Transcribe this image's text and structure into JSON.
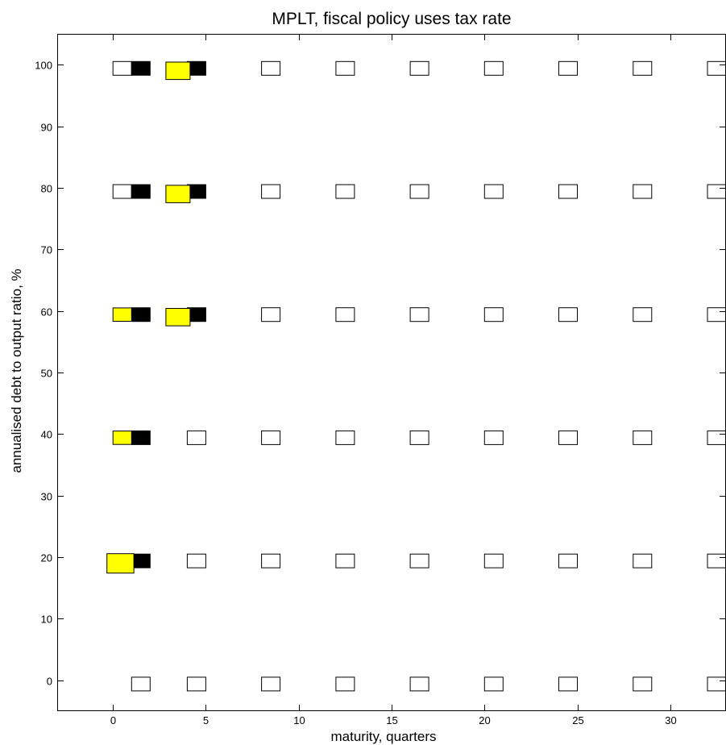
{
  "chart_data": {
    "type": "scatter",
    "title": "MPLT, fiscal policy uses tax rate",
    "xlabel": "maturity, quarters",
    "ylabel": "annualised debt to output ratio, %",
    "xlim": [
      -3,
      33
    ],
    "ylim": [
      -5,
      105
    ],
    "xticks": [
      0,
      5,
      10,
      15,
      20,
      25,
      30
    ],
    "yticks": [
      0,
      10,
      20,
      30,
      40,
      50,
      60,
      70,
      80,
      90,
      100
    ],
    "grid": false,
    "colors": {
      "white": "#ffffff",
      "black": "#000000",
      "yellow": "#ffff00"
    },
    "white_boxes": [
      {
        "x": 1.5,
        "y": -0.6
      },
      {
        "x": 4.5,
        "y": -0.6
      },
      {
        "x": 8.5,
        "y": -0.6
      },
      {
        "x": 12.5,
        "y": -0.6
      },
      {
        "x": 16.5,
        "y": -0.6
      },
      {
        "x": 20.5,
        "y": -0.6
      },
      {
        "x": 24.5,
        "y": -0.6
      },
      {
        "x": 28.5,
        "y": -0.6
      },
      {
        "x": 32.5,
        "y": -0.6
      },
      {
        "x": 4.5,
        "y": 19.4
      },
      {
        "x": 8.5,
        "y": 19.4
      },
      {
        "x": 12.5,
        "y": 19.4
      },
      {
        "x": 16.5,
        "y": 19.4
      },
      {
        "x": 20.5,
        "y": 19.4
      },
      {
        "x": 24.5,
        "y": 19.4
      },
      {
        "x": 28.5,
        "y": 19.4
      },
      {
        "x": 32.5,
        "y": 19.4
      },
      {
        "x": 4.5,
        "y": 39.4
      },
      {
        "x": 8.5,
        "y": 39.4
      },
      {
        "x": 12.5,
        "y": 39.4
      },
      {
        "x": 16.5,
        "y": 39.4
      },
      {
        "x": 20.5,
        "y": 39.4
      },
      {
        "x": 24.5,
        "y": 39.4
      },
      {
        "x": 28.5,
        "y": 39.4
      },
      {
        "x": 32.5,
        "y": 39.4
      },
      {
        "x": 8.5,
        "y": 59.4
      },
      {
        "x": 12.5,
        "y": 59.4
      },
      {
        "x": 16.5,
        "y": 59.4
      },
      {
        "x": 20.5,
        "y": 59.4
      },
      {
        "x": 24.5,
        "y": 59.4
      },
      {
        "x": 28.5,
        "y": 59.4
      },
      {
        "x": 32.5,
        "y": 59.4
      },
      {
        "x": 0.5,
        "y": 79.4
      },
      {
        "x": 8.5,
        "y": 79.4
      },
      {
        "x": 12.5,
        "y": 79.4
      },
      {
        "x": 16.5,
        "y": 79.4
      },
      {
        "x": 20.5,
        "y": 79.4
      },
      {
        "x": 24.5,
        "y": 79.4
      },
      {
        "x": 28.5,
        "y": 79.4
      },
      {
        "x": 32.5,
        "y": 79.4
      },
      {
        "x": 0.5,
        "y": 99.4
      },
      {
        "x": 8.5,
        "y": 99.4
      },
      {
        "x": 12.5,
        "y": 99.4
      },
      {
        "x": 16.5,
        "y": 99.4
      },
      {
        "x": 20.5,
        "y": 99.4
      },
      {
        "x": 24.5,
        "y": 99.4
      },
      {
        "x": 28.5,
        "y": 99.4
      },
      {
        "x": 32.5,
        "y": 99.4
      }
    ],
    "black_boxes": [
      {
        "x": 1.5,
        "y": 19.4
      },
      {
        "x": 1.5,
        "y": 39.4
      },
      {
        "x": 1.5,
        "y": 59.4
      },
      {
        "x": 4.5,
        "y": 59.4
      },
      {
        "x": 1.5,
        "y": 79.4
      },
      {
        "x": 4.5,
        "y": 79.4
      },
      {
        "x": 1.5,
        "y": 99.4
      },
      {
        "x": 4.5,
        "y": 99.4
      }
    ],
    "yellow_boxes": [
      {
        "x": 0.4,
        "y": 19.0,
        "size": 1.45
      },
      {
        "x": 0.5,
        "y": 39.4,
        "size": 1.0
      },
      {
        "x": 0.5,
        "y": 59.4,
        "size": 1.0
      },
      {
        "x": 3.5,
        "y": 59.0,
        "size": 1.3
      },
      {
        "x": 3.5,
        "y": 79.0,
        "size": 1.3
      },
      {
        "x": 3.5,
        "y": 99.0,
        "size": 1.3
      }
    ]
  }
}
